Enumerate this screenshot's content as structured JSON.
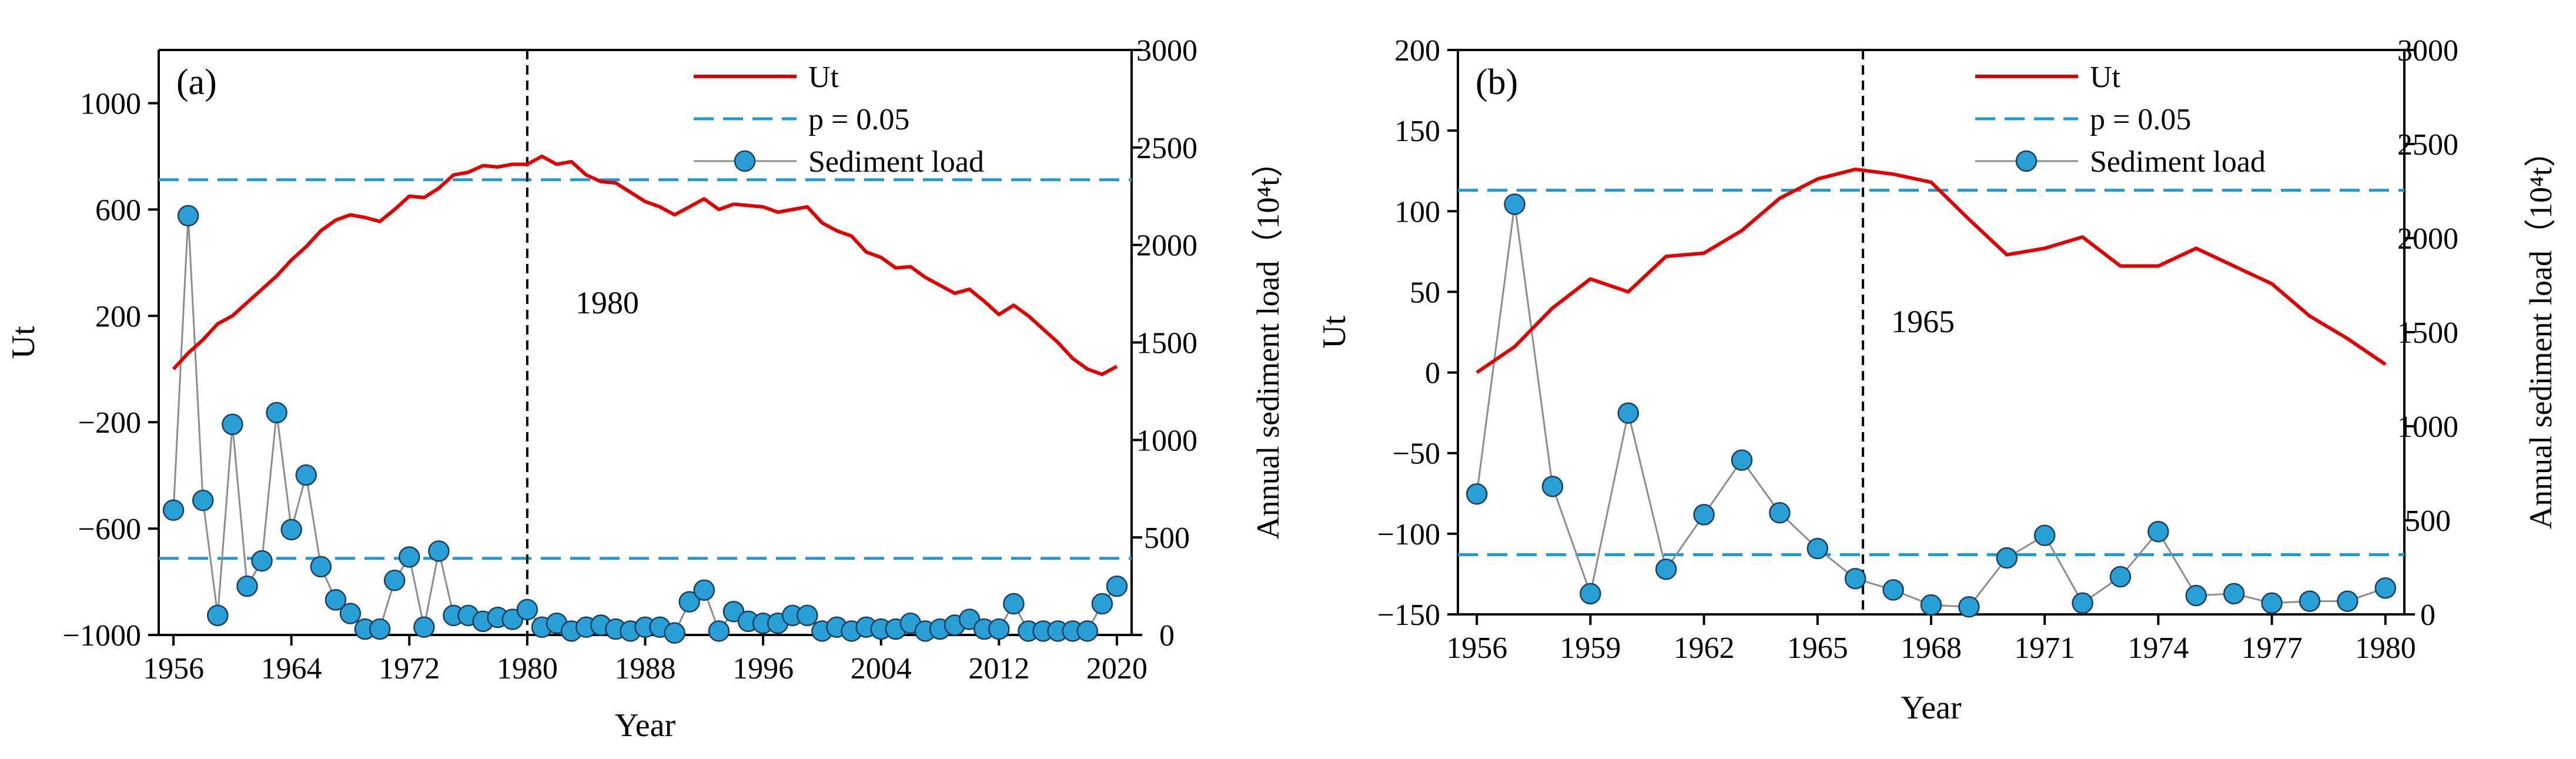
{
  "colors": {
    "ut_line": "#E00000",
    "threshold_line": "#1E9BD7",
    "sediment_line": "#8C8C8C",
    "sediment_marker": "#2A9FD6",
    "marker_edge": "#1A3E5C",
    "axis": "#000000",
    "breakpoint_line": "#000000"
  },
  "chart_data": [
    {
      "type": "line",
      "panel_label": "(a)",
      "title": "",
      "xlabel": "Year",
      "ylabel": "Ut",
      "y2label": "Annual sediment load（10⁴t）",
      "legend_position": "top-right",
      "legend": [
        "Ut",
        "p = 0.05",
        "Sediment load"
      ],
      "xlim": [
        1955,
        2021
      ],
      "ylim": [
        -1000,
        1200
      ],
      "y2lim": [
        0,
        3000
      ],
      "xticks": [
        1956,
        1964,
        1972,
        1980,
        1988,
        1996,
        2004,
        2012,
        2020
      ],
      "yticks": [
        -1000,
        -600,
        -200,
        200,
        600,
        1000
      ],
      "ytick_labels": [
        "−1000",
        "−600",
        "−200",
        "200",
        "600",
        "1000"
      ],
      "y2ticks": [
        0,
        500,
        1000,
        1500,
        2000,
        2500,
        3000
      ],
      "thresholds": [
        712,
        -712
      ],
      "breakpoint": {
        "x": 1980,
        "label": "1980"
      },
      "x": [
        1956,
        1957,
        1958,
        1959,
        1960,
        1961,
        1962,
        1963,
        1964,
        1965,
        1966,
        1967,
        1968,
        1969,
        1970,
        1971,
        1972,
        1973,
        1974,
        1975,
        1976,
        1977,
        1978,
        1979,
        1980,
        1981,
        1982,
        1983,
        1984,
        1985,
        1986,
        1987,
        1988,
        1989,
        1990,
        1991,
        1992,
        1993,
        1994,
        1995,
        1996,
        1997,
        1998,
        1999,
        2000,
        2001,
        2002,
        2003,
        2004,
        2005,
        2006,
        2007,
        2008,
        2009,
        2010,
        2011,
        2012,
        2013,
        2014,
        2015,
        2016,
        2017,
        2018,
        2019,
        2020
      ],
      "series": [
        {
          "name": "Ut",
          "axis": "left",
          "values": [
            0,
            60,
            110,
            170,
            200,
            250,
            300,
            350,
            410,
            460,
            520,
            560,
            580,
            570,
            555,
            600,
            650,
            645,
            680,
            730,
            740,
            765,
            760,
            770,
            770,
            800,
            770,
            780,
            730,
            705,
            700,
            665,
            630,
            610,
            580,
            610,
            640,
            600,
            620,
            615,
            610,
            590,
            600,
            610,
            550,
            520,
            500,
            440,
            420,
            380,
            385,
            345,
            315,
            285,
            300,
            255,
            205,
            240,
            200,
            150,
            100,
            40,
            0,
            -20,
            10
          ]
        },
        {
          "name": "Sediment load",
          "axis": "right",
          "values": [
            640,
            2150,
            690,
            100,
            1080,
            250,
            380,
            1140,
            540,
            820,
            350,
            180,
            110,
            30,
            30,
            280,
            400,
            40,
            430,
            100,
            100,
            70,
            90,
            80,
            130,
            40,
            60,
            20,
            40,
            50,
            30,
            20,
            40,
            40,
            10,
            170,
            230,
            20,
            120,
            70,
            60,
            60,
            100,
            100,
            20,
            40,
            20,
            40,
            30,
            30,
            60,
            20,
            30,
            50,
            80,
            30,
            30,
            160,
            20,
            20,
            20,
            20,
            20,
            160,
            250
          ]
        }
      ]
    },
    {
      "type": "line",
      "panel_label": "(b)",
      "title": "",
      "xlabel": "Year",
      "ylabel": "Ut",
      "y2label": "Annual sediment load（10⁴t）",
      "legend_position": "top-right",
      "legend": [
        "Ut",
        "p = 0.05",
        "Sediment load"
      ],
      "xlim": [
        1955.5,
        1980.5
      ],
      "ylim": [
        -150,
        200
      ],
      "y2lim": [
        0,
        3000
      ],
      "xticks": [
        1956,
        1959,
        1962,
        1965,
        1968,
        1971,
        1974,
        1977,
        1980
      ],
      "yticks": [
        -150,
        -100,
        -50,
        0,
        50,
        100,
        150,
        200
      ],
      "ytick_labels": [
        "−150",
        "−100",
        "−50",
        "0",
        "50",
        "100",
        "150",
        "200"
      ],
      "y2ticks": [
        0,
        500,
        1000,
        1500,
        2000,
        2500,
        3000
      ],
      "thresholds": [
        113,
        -113
      ],
      "breakpoint": {
        "x": 1966.2,
        "label": "1965"
      },
      "x": [
        1956,
        1957,
        1958,
        1959,
        1960,
        1961,
        1962,
        1963,
        1964,
        1965,
        1966,
        1967,
        1968,
        1969,
        1970,
        1971,
        1972,
        1973,
        1974,
        1975,
        1976,
        1977,
        1978,
        1979,
        1980
      ],
      "series": [
        {
          "name": "Ut",
          "axis": "left",
          "values": [
            0,
            16,
            40,
            58,
            50,
            72,
            74,
            88,
            108,
            120,
            126,
            123,
            118,
            95,
            73,
            77,
            84,
            66,
            66,
            77,
            66,
            55,
            35,
            21,
            5
          ]
        },
        {
          "name": "Sediment load",
          "axis": "right",
          "values": [
            640,
            2180,
            680,
            110,
            1070,
            240,
            530,
            820,
            540,
            350,
            190,
            130,
            50,
            40,
            300,
            420,
            60,
            200,
            440,
            100,
            110,
            60,
            70,
            70,
            140
          ]
        }
      ]
    }
  ]
}
